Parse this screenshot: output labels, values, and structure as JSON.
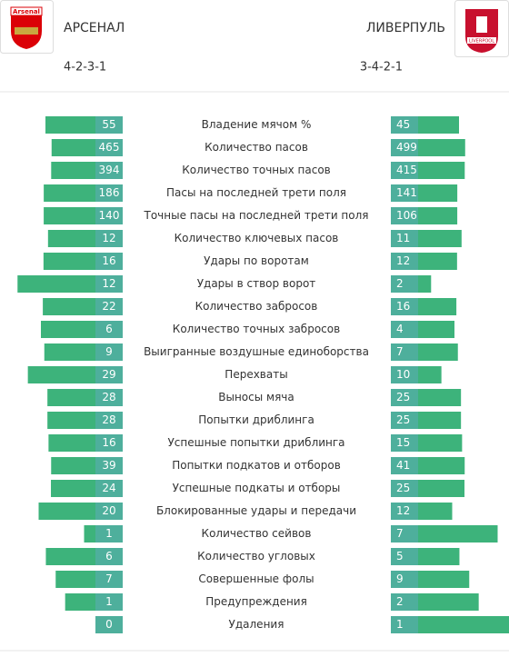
{
  "header": {
    "home": {
      "name": "АРСЕНАЛ",
      "formation": "4-2-3-1",
      "crest_text": "Arsenal"
    },
    "away": {
      "name": "ЛИВЕРПУЛЬ",
      "formation": "3-4-2-1",
      "crest_text": "LIVERPOOL"
    }
  },
  "stats": [
    {
      "label": "Владение мячом %",
      "home": 55,
      "away": 45
    },
    {
      "label": "Количество пасов",
      "home": 465,
      "away": 499
    },
    {
      "label": "Количество точных пасов",
      "home": 394,
      "away": 415
    },
    {
      "label": "Пасы на последней трети поля",
      "home": 186,
      "away": 141
    },
    {
      "label": "Точные пасы на последней трети поля",
      "home": 140,
      "away": 106
    },
    {
      "label": "Количество ключевых пасов",
      "home": 12,
      "away": 11
    },
    {
      "label": "Удары по воротам",
      "home": 16,
      "away": 12
    },
    {
      "label": "Удары в створ ворот",
      "home": 12,
      "away": 2
    },
    {
      "label": "Количество забросов",
      "home": 22,
      "away": 16
    },
    {
      "label": "Количество точных забросов",
      "home": 6,
      "away": 4
    },
    {
      "label": "Выигранные воздушные единоборства",
      "home": 9,
      "away": 7
    },
    {
      "label": "Перехваты",
      "home": 29,
      "away": 10
    },
    {
      "label": "Выносы мяча",
      "home": 28,
      "away": 25
    },
    {
      "label": "Попытки дриблинга",
      "home": 28,
      "away": 25
    },
    {
      "label": "Успешные попытки дриблинга",
      "home": 16,
      "away": 15
    },
    {
      "label": "Попытки подкатов и отборов",
      "home": 39,
      "away": 41
    },
    {
      "label": "Успешные подкаты и отборы",
      "home": 24,
      "away": 25
    },
    {
      "label": "Блокированные удары и передачи",
      "home": 20,
      "away": 12
    },
    {
      "label": "Количество сейвов",
      "home": 1,
      "away": 7
    },
    {
      "label": "Количество угловых",
      "home": 6,
      "away": 5
    },
    {
      "label": "Совершенные фолы",
      "home": 7,
      "away": 9
    },
    {
      "label": "Предупреждения",
      "home": 1,
      "away": 2
    },
    {
      "label": "Удаления",
      "home": 0,
      "away": 1
    }
  ]
}
